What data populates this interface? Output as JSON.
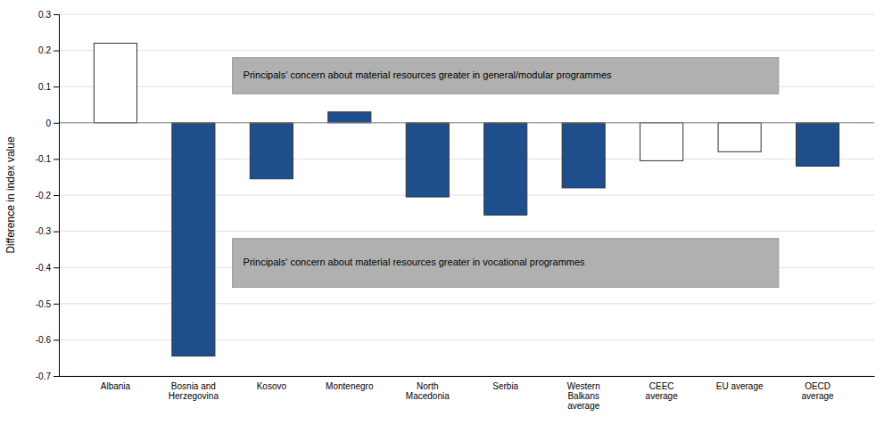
{
  "chart_data": {
    "type": "bar",
    "categories": [
      "Albania",
      "Bosnia and\nHerzegovina",
      "Kosovo",
      "Montenegro",
      "North\nMacedonia",
      "Serbia",
      "Western\nBalkans\naverage",
      "CEEC\naverage",
      "EU average",
      "OECD\naverage"
    ],
    "values": [
      0.22,
      -0.645,
      -0.155,
      0.03,
      -0.205,
      -0.255,
      -0.18,
      -0.105,
      -0.08,
      -0.12
    ],
    "colors": [
      "#ffffff",
      "#1f4e8c",
      "#1f4e8c",
      "#1f4e8c",
      "#1f4e8c",
      "#1f4e8c",
      "#1f4e8c",
      "#ffffff",
      "#ffffff",
      "#1f4e8c"
    ],
    "ylabel": "Difference in index value",
    "ylim": [
      -0.7,
      0.3
    ],
    "yticks": [
      -0.7,
      -0.6,
      -0.5,
      -0.4,
      -0.3,
      -0.2,
      -0.1,
      0.0,
      0.1,
      0.2,
      0.3
    ],
    "grid": true,
    "annotations": [
      "Principals' concern about material resources greater in general/modular programmes",
      "Principals' concern about material resources greater in vocational programmes"
    ]
  }
}
